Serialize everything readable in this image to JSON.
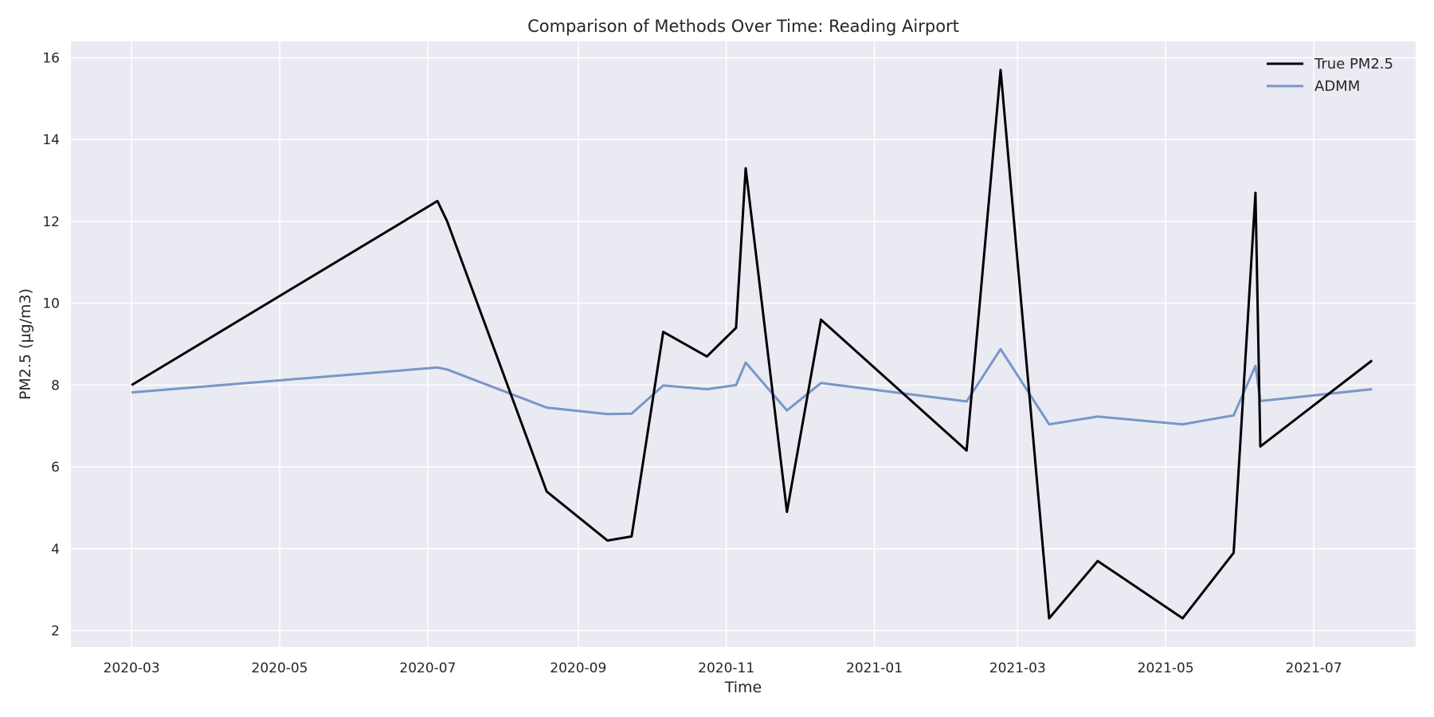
{
  "chart_data": {
    "type": "line",
    "title": "Comparison of Methods Over Time: Reading Airport",
    "xlabel": "Time",
    "ylabel": "PM2.5 (µg/m3)",
    "x_axis_type": "date",
    "xlim": [
      "2020-02-05",
      "2021-08-12"
    ],
    "ylim": [
      1.6,
      16.4
    ],
    "xticks": [
      "2020-03-01",
      "2020-05-01",
      "2020-07-01",
      "2020-09-01",
      "2020-11-01",
      "2021-01-01",
      "2021-03-01",
      "2021-05-01",
      "2021-07-01"
    ],
    "xtick_labels": [
      "2020-03",
      "2020-05",
      "2020-07",
      "2020-09",
      "2020-11",
      "2021-01",
      "2021-03",
      "2021-05",
      "2021-07"
    ],
    "yticks": [
      2,
      4,
      6,
      8,
      10,
      12,
      14,
      16
    ],
    "ytick_labels": [
      "2",
      "4",
      "6",
      "8",
      "10",
      "12",
      "14",
      "16"
    ],
    "grid": true,
    "legend_position": "top-right",
    "x": [
      "2020-03-01",
      "2020-07-05",
      "2020-07-09",
      "2020-08-19",
      "2020-09-13",
      "2020-09-23",
      "2020-10-06",
      "2020-10-24",
      "2020-11-05",
      "2020-11-09",
      "2020-11-26",
      "2020-12-10",
      "2021-02-08",
      "2021-02-22",
      "2021-03-14",
      "2021-04-03",
      "2021-05-08",
      "2021-05-29",
      "2021-06-07",
      "2021-06-09",
      "2021-07-25"
    ],
    "series": [
      {
        "name": "True PM2.5",
        "color": "#000000",
        "values": [
          8.0,
          12.5,
          12.0,
          5.4,
          4.2,
          4.3,
          9.3,
          8.7,
          9.4,
          13.3,
          4.9,
          9.6,
          6.4,
          15.7,
          2.3,
          3.7,
          2.3,
          3.9,
          12.7,
          6.5,
          8.6
        ]
      },
      {
        "name": "ADMM",
        "color": "#7896c8",
        "values": [
          7.82,
          8.43,
          8.38,
          7.45,
          7.29,
          7.3,
          7.99,
          7.9,
          8.0,
          8.55,
          7.38,
          8.05,
          7.6,
          8.88,
          7.04,
          7.23,
          7.04,
          7.26,
          8.47,
          7.61,
          7.9
        ]
      }
    ]
  }
}
